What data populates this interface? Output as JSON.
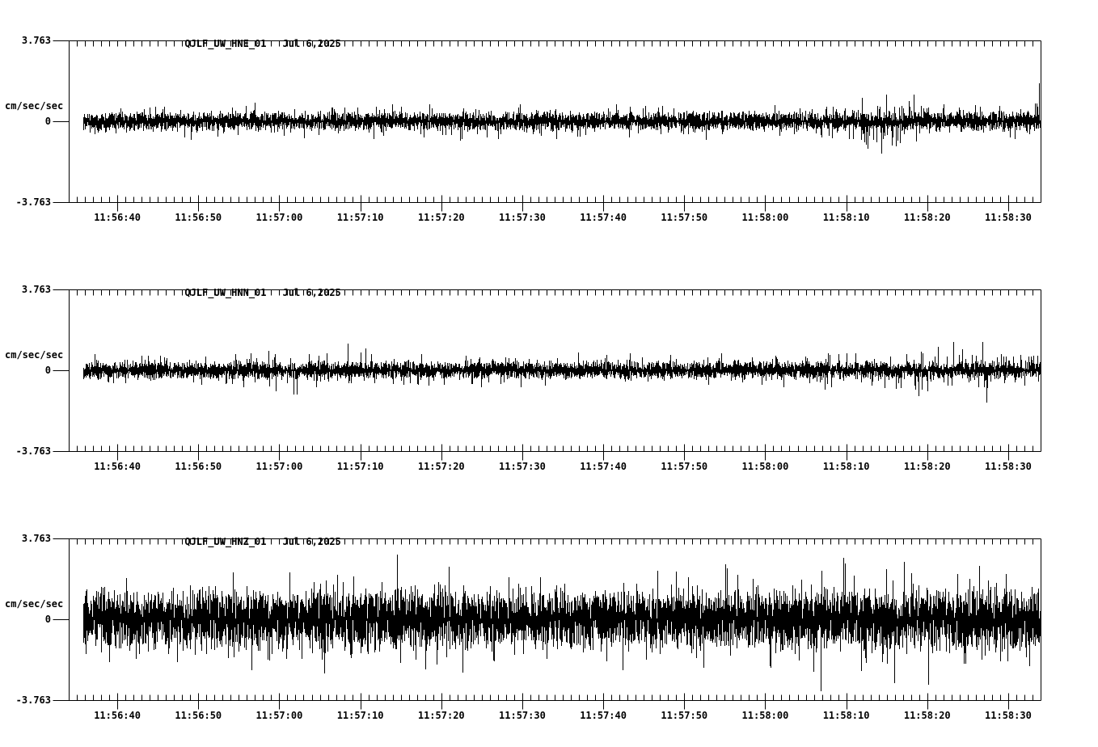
{
  "colors": {
    "background": "#ffffff",
    "ink": "#000000"
  },
  "chart_data": {
    "type": "line",
    "subtype": "seismogram-triaxial-min-max",
    "date": "Jul 6,2025",
    "ylabel": "cm/sec/sec",
    "ylim": [
      -3.763,
      3.763
    ],
    "ytick_labels": [
      "3.763",
      "0",
      "-3.763"
    ],
    "time_start": "11:56:34",
    "time_end": "11:58:34",
    "duration_seconds": 120,
    "x_major_tick_interval_seconds": 10,
    "x_minor_tick_interval_seconds": 1,
    "first_major_tick_offset_seconds": 6,
    "xtick_labels": [
      "11:56:40",
      "11:56:50",
      "11:57:00",
      "11:57:10",
      "11:57:20",
      "11:57:30",
      "11:57:40",
      "11:57:50",
      "11:58:00",
      "11:58:10",
      "11:58:20",
      "11:58:30"
    ],
    "panels": [
      {
        "id": "hne",
        "label": "QJLF_UW_HNE_01",
        "units": "cm/sec/sec",
        "noise_band_amplitude": 0.32,
        "envelope_peak_by_10s": [
          0.9,
          1.0,
          1.05,
          0.95,
          1.0,
          1.05,
          0.95,
          1.0,
          0.9,
          0.95,
          1.55,
          1.05,
          1.25
        ],
        "notable_spikes": [
          {
            "t": 100.3,
            "amplitude": -1.5
          },
          {
            "t": 119.8,
            "amplitude": 1.75
          }
        ],
        "seed": 11
      },
      {
        "id": "hnn",
        "label": "QJLF_UW_HNN_01",
        "units": "cm/sec/sec",
        "noise_band_amplitude": 0.3,
        "envelope_peak_by_10s": [
          0.9,
          0.95,
          1.0,
          1.35,
          0.95,
          0.9,
          0.95,
          1.0,
          0.95,
          1.0,
          1.15,
          1.45,
          1.0
        ],
        "notable_spikes": [
          {
            "t": 34.4,
            "amplitude": 1.25
          },
          {
            "t": 112.8,
            "amplitude": 1.3
          },
          {
            "t": 113.3,
            "amplitude": -1.5
          }
        ],
        "seed": 22
      },
      {
        "id": "hnz",
        "label": "QJLF_UW_HNZ_01",
        "units": "cm/sec/sec",
        "noise_band_amplitude": 1.05,
        "envelope_peak_by_10s": [
          2.3,
          2.5,
          2.7,
          2.9,
          2.5,
          3.2,
          2.9,
          2.7,
          2.8,
          2.7,
          3.3,
          3.0,
          2.9
        ],
        "notable_spikes": [
          {
            "t": 92.8,
            "amplitude": -3.35
          },
          {
            "t": 40.5,
            "amplitude": 3.0
          }
        ],
        "seed": 33
      }
    ]
  }
}
